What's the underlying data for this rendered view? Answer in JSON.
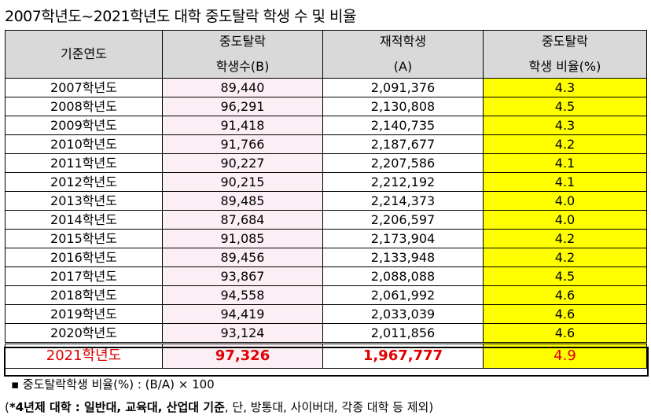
{
  "title": "2007학년도~2021학년도 대학 중도탈락 학생 수 및 비율",
  "headers": {
    "year": "기준연도",
    "dropout_top": "중도탈락",
    "dropout_bottom": "학생수(B)",
    "enrolled_top": "재적학생",
    "enrolled_bottom": "(A)",
    "rate_top": "중도탈락",
    "rate_bottom": "학생 비율(%)"
  },
  "rows": [
    {
      "year": "2007학년도",
      "dropout": "89,440",
      "enrolled": "2,091,376",
      "rate": "4.3"
    },
    {
      "year": "2008학년도",
      "dropout": "96,291",
      "enrolled": "2,130,808",
      "rate": "4.5"
    },
    {
      "year": "2009학년도",
      "dropout": "91,418",
      "enrolled": "2,140,735",
      "rate": "4.3"
    },
    {
      "year": "2010학년도",
      "dropout": "91,766",
      "enrolled": "2,187,677",
      "rate": "4.2"
    },
    {
      "year": "2011학년도",
      "dropout": "90,227",
      "enrolled": "2,207,586",
      "rate": "4.1"
    },
    {
      "year": "2012학년도",
      "dropout": "90,215",
      "enrolled": "2,212,192",
      "rate": "4.1"
    },
    {
      "year": "2013학년도",
      "dropout": "89,485",
      "enrolled": "2,214,373",
      "rate": "4.0"
    },
    {
      "year": "2014학년도",
      "dropout": "87,684",
      "enrolled": "2,206,597",
      "rate": "4.0"
    },
    {
      "year": "2015학년도",
      "dropout": "91,085",
      "enrolled": "2,173,904",
      "rate": "4.2"
    },
    {
      "year": "2016학년도",
      "dropout": "89,456",
      "enrolled": "2,133,948",
      "rate": "4.2"
    },
    {
      "year": "2017학년도",
      "dropout": "93,867",
      "enrolled": "2,088,088",
      "rate": "4.5"
    },
    {
      "year": "2018학년도",
      "dropout": "94,558",
      "enrolled": "2,061,992",
      "rate": "4.6"
    },
    {
      "year": "2019학년도",
      "dropout": "94,419",
      "enrolled": "2,033,039",
      "rate": "4.6"
    },
    {
      "year": "2020학년도",
      "dropout": "93,124",
      "enrolled": "2,011,856",
      "rate": "4.6"
    }
  ],
  "highlight_row": {
    "year": "2021학년도",
    "dropout": "97,326",
    "enrolled": "1,967,777",
    "rate": "4.9"
  },
  "footnotes": {
    "formula": "▪  중도탈락학생 비율(%) : (B/A) × 100",
    "scope_open": "(",
    "scope_bold": "*4년제 대학 : 일반대, 교육대, 산업대 기준",
    "scope_rest": ", 단, 방통대, 사이버대, 각종 대학 등 제외)"
  },
  "colors": {
    "header_bg": "#d9d9d9",
    "dropout_bg": "#fbeef5",
    "rate_bg": "#ffff00",
    "highlight_text": "#e00000"
  }
}
